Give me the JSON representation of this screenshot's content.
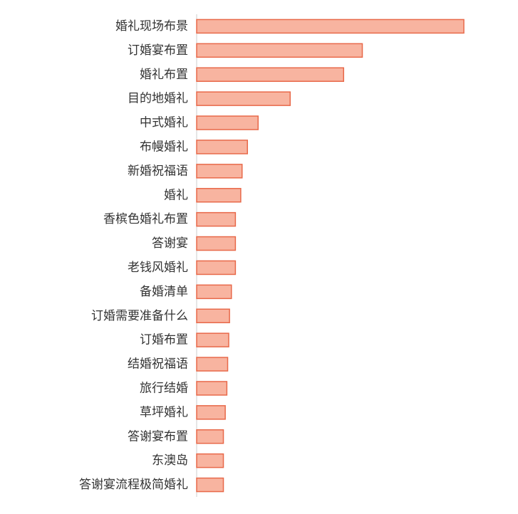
{
  "chart_data": {
    "type": "bar",
    "orientation": "horizontal",
    "title": "",
    "xlabel": "",
    "ylabel": "",
    "xlim": [
      0,
      100
    ],
    "grid": false,
    "legend": "none",
    "bar_color": "#f8b4a0",
    "bar_edge_color": "#e8694a",
    "axis_color": "#cccccc",
    "label_color": "#333333",
    "categories": [
      "婚礼现场布景",
      "订婚宴布置",
      "婚礼布置",
      "目的地婚礼",
      "中式婚礼",
      "布幔婚礼",
      "新婚祝福语",
      "婚礼",
      "香槟色婚礼布置",
      "答谢宴",
      "老钱风婚礼",
      "备婚清单",
      "订婚需要准备什么",
      "订婚布置",
      "结婚祝福语",
      "旅行结婚",
      "草坪婚礼",
      "答谢宴布置",
      "东澳岛",
      "答谢宴流程极简婚礼"
    ],
    "values": [
      100,
      62,
      55,
      35,
      23,
      19,
      17,
      16.5,
      14.5,
      14.5,
      14.5,
      13,
      12.3,
      12,
      11.6,
      11.3,
      10.7,
      10,
      10,
      10
    ]
  }
}
